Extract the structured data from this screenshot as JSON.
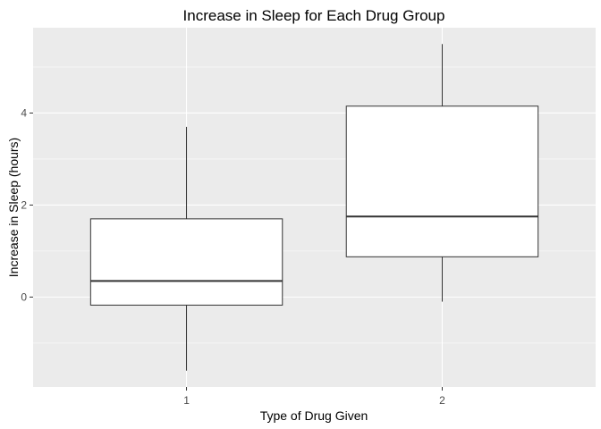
{
  "chart_data": {
    "type": "boxplot",
    "title": "Increase in Sleep for Each Drug Group",
    "xlabel": "Type of Drug Given",
    "ylabel": "Increase in Sleep (hours)",
    "categories": [
      "1",
      "2"
    ],
    "boxes": [
      {
        "category": "1",
        "min": -1.6,
        "q1": -0.175,
        "median": 0.35,
        "q3": 1.7,
        "max": 3.7
      },
      {
        "category": "2",
        "min": -0.1,
        "q1": 0.875,
        "median": 1.75,
        "q3": 4.15,
        "max": 5.5
      }
    ],
    "y_ticks": [
      0,
      2,
      4
    ],
    "y_tick_labels": [
      "0",
      "2",
      "4"
    ],
    "ylim": [
      -1.955,
      5.855
    ],
    "grid": true,
    "colors": {
      "panel_background": "#ebebeb",
      "grid_major": "#ffffff",
      "box_fill": "#ffffff",
      "box_stroke": "#333333"
    }
  }
}
